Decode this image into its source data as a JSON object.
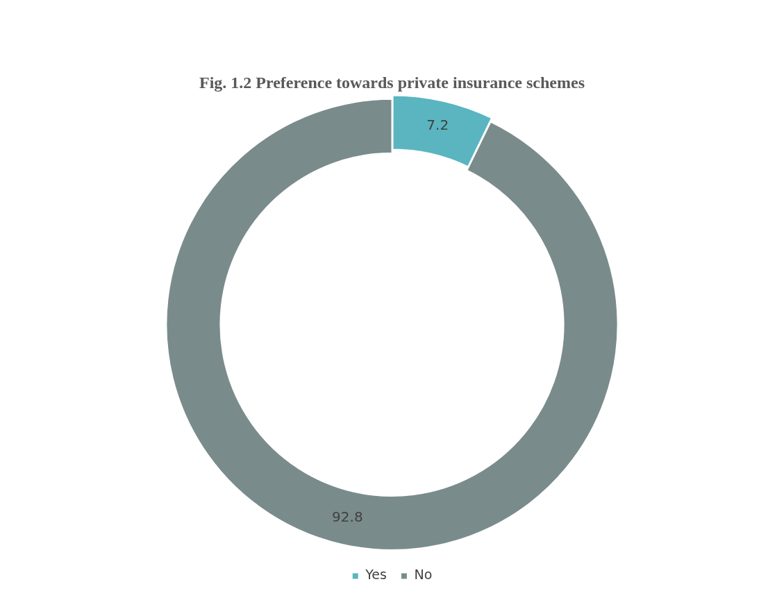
{
  "chart_data": {
    "type": "donut",
    "title": "Fig. 1.2 Preference towards private insurance schemes",
    "categories": [
      "Yes",
      "No"
    ],
    "values": [
      7.2,
      92.8
    ],
    "colors": [
      "#5ab5c0",
      "#7a8b8b"
    ],
    "data_labels": true,
    "legend": "bottom"
  }
}
